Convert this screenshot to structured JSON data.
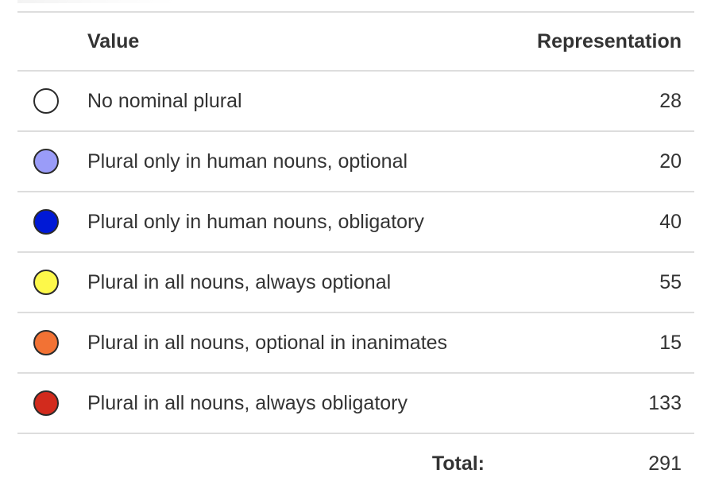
{
  "table": {
    "header": {
      "value": "Value",
      "representation": "Representation"
    },
    "rows": [
      {
        "label": "No nominal plural",
        "count": "28",
        "color": "#ffffff",
        "icon": "circle-icon"
      },
      {
        "label": "Plural only in human nouns, optional",
        "count": "20",
        "color": "#9a9cf8",
        "icon": "circle-icon"
      },
      {
        "label": "Plural only in human nouns, obligatory",
        "count": "40",
        "color": "#0019d6",
        "icon": "circle-icon"
      },
      {
        "label": "Plural in all nouns, always optional",
        "count": "55",
        "color": "#fdf84a",
        "icon": "circle-icon"
      },
      {
        "label": "Plural in all nouns, optional in inanimates",
        "count": "15",
        "color": "#f27234",
        "icon": "circle-icon"
      },
      {
        "label": "Plural in all nouns, always obligatory",
        "count": "133",
        "color": "#d22b1d",
        "icon": "circle-icon"
      }
    ],
    "total": {
      "label": "Total:",
      "value": "291"
    }
  }
}
